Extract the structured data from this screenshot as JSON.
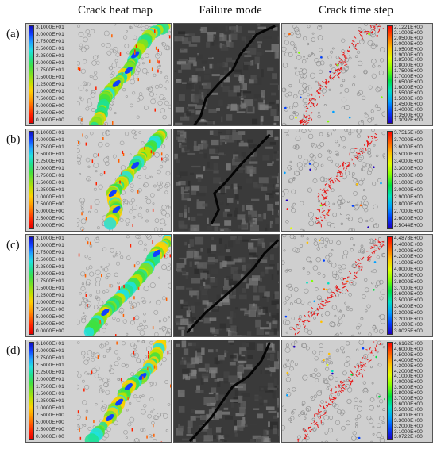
{
  "headers": {
    "heat": "Crack heat map",
    "failure": "Failure mode",
    "time": "Crack time step"
  },
  "rows": [
    {
      "label": "(a)",
      "heat_legend": [
        "3.1000E+01",
        "3.0000E+01",
        "2.7500E+01",
        "2.5000E+01",
        "2.2500E+01",
        "2.0000E+01",
        "1.7500E+01",
        "1.5000E+01",
        "1.2500E+01",
        "1.0000E+01",
        "7.5000E+00",
        "5.0000E+00",
        "2.5000E+00",
        "0.0000E+00"
      ],
      "time_legend": [
        "2.1221E+00",
        "2.1000E+00",
        "2.0500E+00",
        "2.0000E+00",
        "1.9500E+00",
        "1.9000E+00",
        "1.8500E+00",
        "1.8000E+00",
        "1.7500E+00",
        "1.7000E+00",
        "1.6500E+00",
        "1.6000E+00",
        "1.5500E+00",
        "1.5000E+00",
        "1.4500E+00",
        "1.4000E+00",
        "1.3500E+00",
        "1.3092E+00"
      ]
    },
    {
      "label": "(b)",
      "heat_legend": [
        "3.1000E+01",
        "3.0000E+01",
        "2.7500E+01",
        "2.5000E+01",
        "2.2500E+01",
        "2.0000E+01",
        "1.7500E+01",
        "1.5000E+01",
        "1.2500E+01",
        "1.0000E+01",
        "7.5000E+00",
        "5.0000E+00",
        "2.5000E+00",
        "0.0000E+00"
      ],
      "time_legend": [
        "3.7515E+00",
        "3.7000E+00",
        "3.6000E+00",
        "3.5000E+00",
        "3.4000E+00",
        "3.3000E+00",
        "3.2000E+00",
        "3.1000E+00",
        "3.0000E+00",
        "2.9000E+00",
        "2.8000E+00",
        "2.7000E+00",
        "2.6000E+00",
        "2.5044E+00"
      ]
    },
    {
      "label": "(c)",
      "heat_legend": [
        "3.1000E+01",
        "3.0000E+01",
        "2.7500E+01",
        "2.5000E+01",
        "2.2500E+01",
        "2.0000E+01",
        "1.7500E+01",
        "1.5000E+01",
        "1.2500E+01",
        "1.0000E+01",
        "7.5000E+00",
        "5.0000E+00",
        "2.5000E+00",
        "0.0000E+00"
      ],
      "time_legend": [
        "4.4878E+00",
        "4.4000E+00",
        "4.3000E+00",
        "4.2000E+00",
        "4.1000E+00",
        "4.0000E+00",
        "3.9000E+00",
        "3.8000E+00",
        "3.7000E+00",
        "3.6000E+00",
        "3.5000E+00",
        "3.4000E+00",
        "3.3000E+00",
        "3.2000E+00",
        "3.1000E+00",
        "3.0025E+00"
      ]
    },
    {
      "label": "(d)",
      "heat_legend": [
        "3.1000E+01",
        "3.0000E+01",
        "2.7500E+01",
        "2.5000E+01",
        "2.2500E+01",
        "2.0000E+01",
        "1.7500E+01",
        "1.5000E+01",
        "1.2500E+01",
        "1.0000E+01",
        "7.5000E+00",
        "5.0000E+00",
        "2.5000E+00",
        "0.0000E+00"
      ],
      "time_legend": [
        "4.6162E+00",
        "4.6000E+00",
        "4.5000E+00",
        "4.4000E+00",
        "4.3000E+00",
        "4.2000E+00",
        "4.1000E+00",
        "4.0000E+00",
        "3.9000E+00",
        "3.8000E+00",
        "3.7000E+00",
        "3.6000E+00",
        "3.5000E+00",
        "3.4000E+00",
        "3.3000E+00",
        "3.2000E+00",
        "3.1000E+00",
        "3.0722E+00"
      ]
    }
  ],
  "colors": {
    "heat_scale": [
      "#1010c0",
      "#1040ff",
      "#20a0ff",
      "#20e0e0",
      "#20e090",
      "#40e040",
      "#80e020",
      "#c0e000",
      "#ffd000",
      "#ffa000",
      "#ff6000",
      "#ff2000",
      "#e00000"
    ],
    "time_scale": [
      "#ff0000",
      "#ff6000",
      "#ffc000",
      "#e0ff00",
      "#80ff00",
      "#00e040",
      "#00e0c0",
      "#00a0ff",
      "#0040ff",
      "#2000c0"
    ],
    "crack_red": "#e81010"
  }
}
